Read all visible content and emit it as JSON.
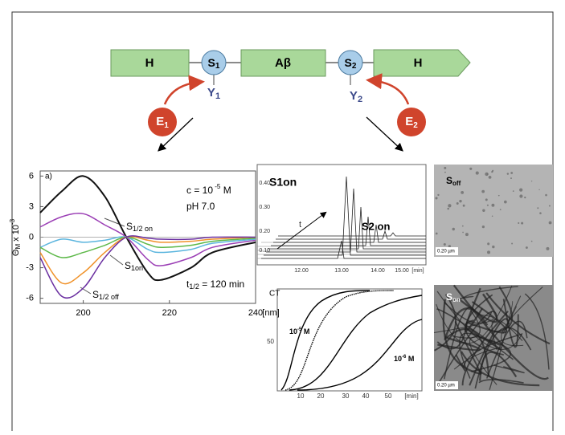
{
  "diagram": {
    "h_left": "H",
    "s1": {
      "main": "S",
      "sub": "1"
    },
    "ab": "Aβ",
    "s2": {
      "main": "S",
      "sub": "2"
    },
    "h_right": "H",
    "y1": {
      "main": "Y",
      "sub": "1"
    },
    "y2": {
      "main": "Y",
      "sub": "2"
    },
    "e1": {
      "main": "E",
      "sub": "1"
    },
    "e2": {
      "main": "E",
      "sub": "2"
    }
  },
  "chart_data": {
    "type": "line",
    "panel_label": "a)",
    "x_unit": "[nm]",
    "y_label": {
      "main": "Θ",
      "sub": "M",
      "mid": " x 10",
      "sup": "-3"
    },
    "xlim": [
      190,
      240
    ],
    "ylim": [
      -6.5,
      6.5
    ],
    "xticks": [
      200,
      220,
      240
    ],
    "yticks": [
      -6,
      -3,
      0,
      3,
      6
    ],
    "x": [
      190,
      195,
      200,
      205,
      210,
      215,
      218,
      225,
      230,
      240
    ],
    "series": [
      {
        "color": "#111111",
        "values": [
          2.4,
          4.5,
          6,
          4,
          0,
          -3.5,
          -4.2,
          -3,
          -1.5,
          -0.5
        ]
      },
      {
        "color": "#9b3fb5",
        "values": [
          1,
          2,
          2.3,
          1.2,
          0,
          -2.2,
          -2.8,
          -2,
          -1,
          -0.3
        ]
      },
      {
        "color": "#5bb5de",
        "values": [
          -1,
          -0.2,
          -0.5,
          -0.3,
          0,
          -1.2,
          -1.5,
          -1.2,
          -0.6,
          -0.2
        ]
      },
      {
        "color": "#5cb848",
        "values": [
          -1,
          -2,
          -1.5,
          -0.8,
          0,
          -0.7,
          -1,
          -0.8,
          -0.4,
          -0.1
        ]
      },
      {
        "color": "#f0922a",
        "values": [
          -1.5,
          -4.5,
          -3.5,
          -1.5,
          0,
          -0.3,
          -0.5,
          -0.4,
          -0.2,
          0
        ]
      },
      {
        "color": "#6a2fa0",
        "values": [
          -2,
          -5.8,
          -5,
          -2,
          0,
          -0.1,
          -0.2,
          -0.2,
          0,
          0
        ]
      }
    ],
    "annotations": {
      "conc": {
        "text": "c = 10",
        "sup": " -5",
        "tail": " M"
      },
      "ph": "pH 7.0",
      "s_half_on": {
        "main": "S",
        "sub": "1/2 on"
      },
      "s_on": {
        "main": "S",
        "sub": "1on"
      },
      "s_half_off": {
        "main": "S",
        "sub": "1/2 off"
      },
      "t_half": {
        "main": "t",
        "sub": "1/2",
        "tail": " = 120 min"
      }
    }
  },
  "hplc": {
    "title": "S1on",
    "label2": "S2 on",
    "arrow_label": "t",
    "y_labels": [
      "0.40",
      "0.30",
      "0.20",
      "0.10"
    ],
    "x_labels": [
      "12.00",
      "13.00",
      "14.00",
      "15.00"
    ],
    "x_unit": "[min]"
  },
  "kinetics": {
    "y_title": "CT",
    "y_label": "50",
    "x_labels": [
      "10",
      "20",
      "30",
      "40",
      "50"
    ],
    "x_unit": "[min]",
    "curve1": {
      "main": "10",
      "sup": "-5",
      "tail": " M"
    },
    "curve2": {
      "main": "10",
      "sup": "-6",
      "tail": " M"
    }
  },
  "micrographs": [
    {
      "label": {
        "main": "S",
        "sub": "off"
      },
      "scale": "0.20 µm"
    },
    {
      "label": {
        "main": "S",
        "sub": "on"
      },
      "scale": "0.20 µm"
    }
  ]
}
